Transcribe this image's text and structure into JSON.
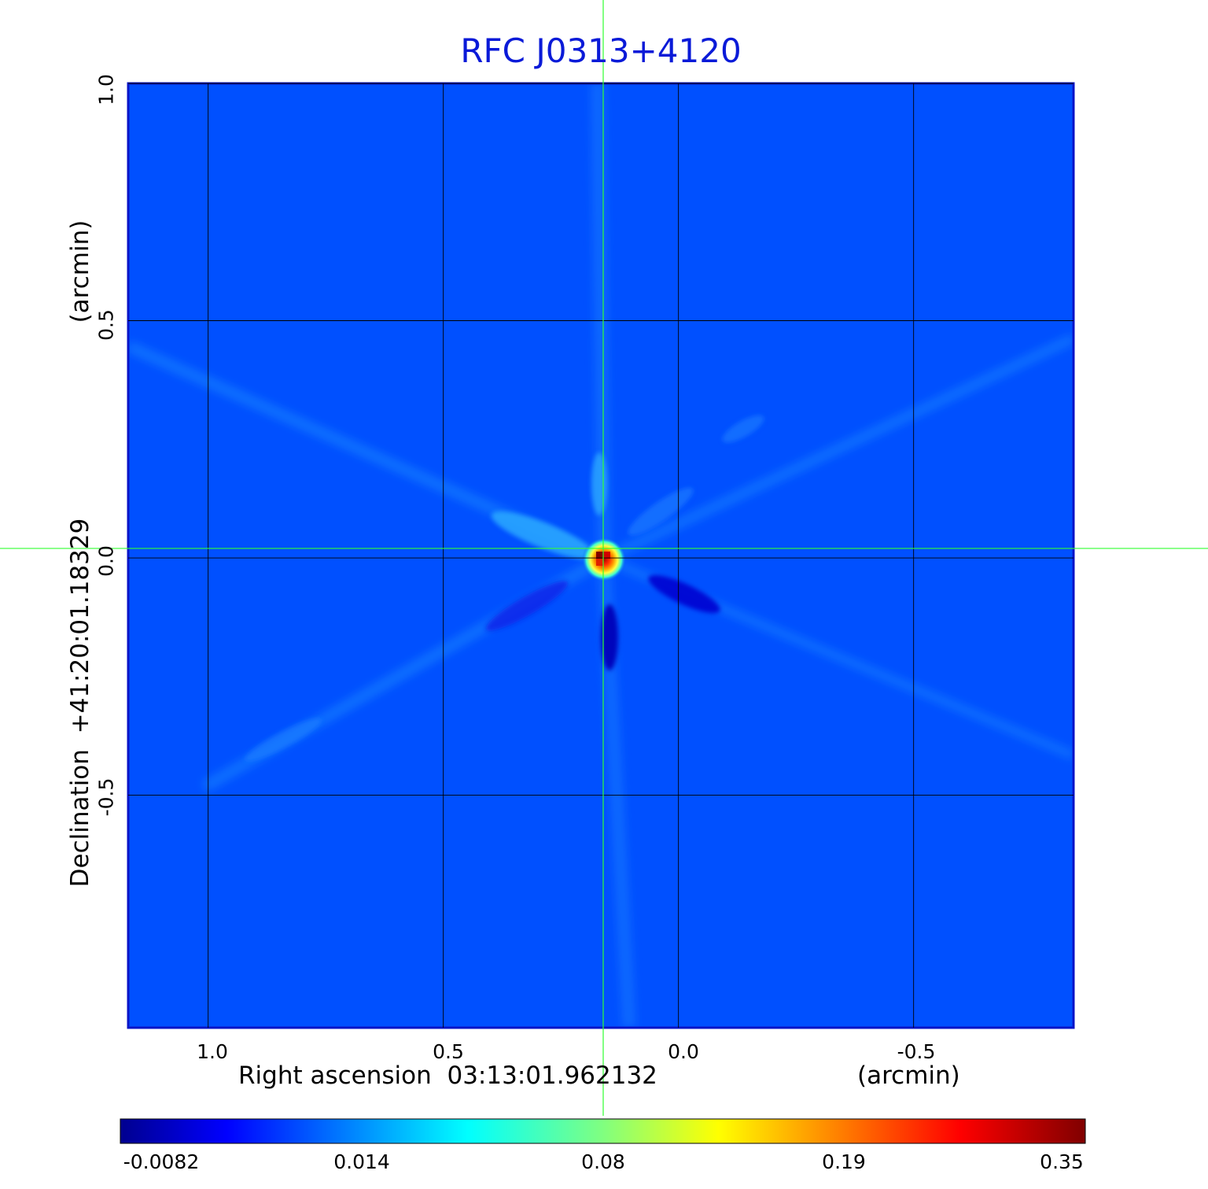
{
  "chart_data": {
    "type": "heatmap",
    "title": "RFC J0313+4120",
    "xlabel": "Right ascension  03:13:01.962132",
    "xunit": "(arcmin)",
    "ylabel": "Declination  +41:20:01.18329",
    "yunit": "(arcmin)",
    "xlim": [
      1.17,
      -0.84
    ],
    "ylim": [
      -0.99,
      1.0
    ],
    "x_ticks": [
      "1.0",
      "0.5",
      "0.0",
      "-0.5"
    ],
    "y_ticks": [
      "1.0",
      "0.5",
      "0.0",
      "-0.5"
    ],
    "grid": true,
    "crosshair": {
      "x": 0.16,
      "y": 0.02
    },
    "colorbar": {
      "orientation": "horizontal",
      "colormap": "jet",
      "tick_labels": [
        "-0.0082",
        "0.014",
        "0.08",
        "0.19",
        "0.35"
      ]
    },
    "source_peak": {
      "ra_offset": 0.16,
      "dec_offset": 0.02,
      "value": 0.35
    }
  },
  "colors": {
    "title": "#0a1ad8",
    "background_field": "#0050ff",
    "crosshair": "#30ff30",
    "grid": "#000000"
  }
}
